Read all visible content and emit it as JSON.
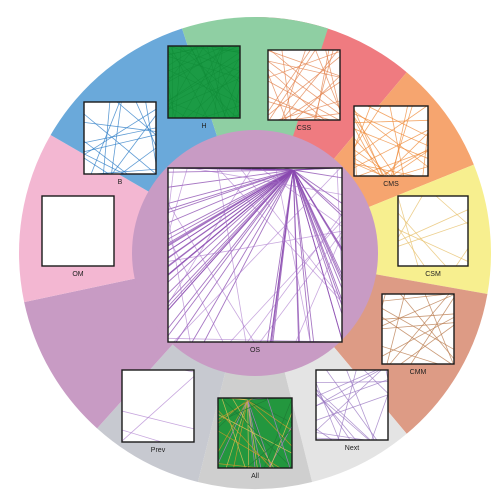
{
  "segments": [
    {
      "key": "H",
      "label": "H",
      "color": "#8fcfa3",
      "from": -18,
      "to": 18
    },
    {
      "key": "CSS",
      "label": "CSS",
      "color": "#ef7b80",
      "from": 0,
      "to": 40
    },
    {
      "key": "CMS",
      "label": "CMS",
      "color": "#f6a56f",
      "from": 40,
      "to": 68
    },
    {
      "key": "CSM",
      "label": "CSM",
      "color": "#f7ef8f",
      "from": 68,
      "to": 100
    },
    {
      "key": "CMM",
      "label": "CMM",
      "color": "#dd9b85",
      "from": 100,
      "to": 140
    },
    {
      "key": "Next",
      "label": "Next",
      "color": "#e4e4e4",
      "from": 140,
      "to": 166
    },
    {
      "key": "All",
      "label": "All",
      "color": "#cfcfcf",
      "from": 166,
      "to": 194
    },
    {
      "key": "Prev",
      "label": "Prev",
      "color": "#c7c9d0",
      "from": 194,
      "to": 222
    },
    {
      "key": "OS_outer",
      "label": "",
      "color": "#c89bc4",
      "from": 222,
      "to": 258
    },
    {
      "key": "OM",
      "label": "OM",
      "color": "#f3b7d2",
      "from": 258,
      "to": 300
    },
    {
      "key": "B",
      "label": "B",
      "color": "#6aa9da",
      "from": 300,
      "to": 342
    }
  ],
  "center": {
    "label": "OS",
    "color": "#c89bc4"
  },
  "thumbnails": [
    {
      "key": "H",
      "label": "H",
      "stroke": "#139a3f",
      "fill": "#1b9b45",
      "lines": 0
    },
    {
      "key": "CSS",
      "label": "CSS",
      "stroke": "#e3834e",
      "fill": "#ffffff",
      "lines": 34
    },
    {
      "key": "CMS",
      "label": "CMS",
      "stroke": "#ef8b3a",
      "fill": "#ffffff",
      "lines": 40
    },
    {
      "key": "CSM",
      "label": "CSM",
      "stroke": "#e7c06a",
      "fill": "#ffffff",
      "lines": 14
    },
    {
      "key": "CMM",
      "label": "CMM",
      "stroke": "#b97a4c",
      "fill": "#ffffff",
      "lines": 18
    },
    {
      "key": "Next",
      "label": "Next",
      "stroke": "#9a78c2",
      "fill": "#ffffff",
      "lines": 22
    },
    {
      "key": "All",
      "label": "All",
      "stroke": "#d19a2a",
      "fill": "#23973e",
      "lines": 18
    },
    {
      "key": "Prev",
      "label": "Prev",
      "stroke": "#b58ad3",
      "fill": "#ffffff",
      "lines": 5
    },
    {
      "key": "OM",
      "label": "OM",
      "stroke": "#999999",
      "fill": "#ffffff",
      "lines": 0
    },
    {
      "key": "B",
      "label": "B",
      "stroke": "#2b7cc6",
      "fill": "#ffffff",
      "lines": 22
    },
    {
      "key": "OS",
      "label": "OS",
      "stroke": "#8a4ab0",
      "fill": "#ffffff",
      "lines": 70
    }
  ]
}
